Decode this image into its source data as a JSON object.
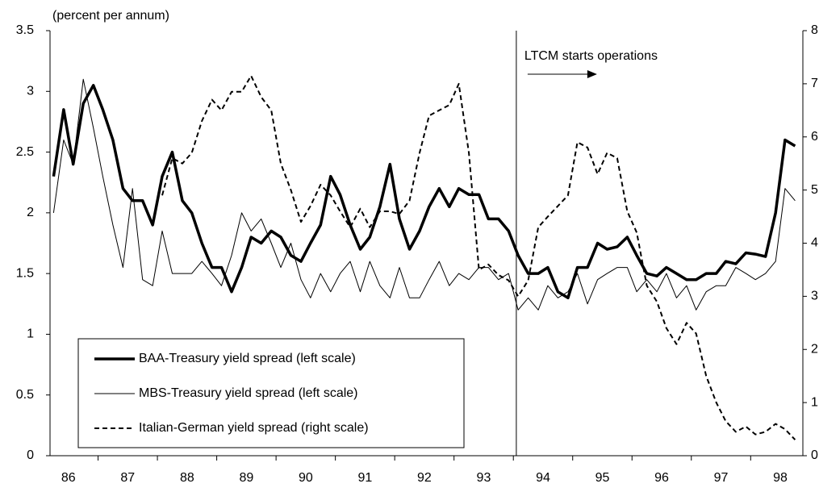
{
  "chart_data": {
    "type": "line",
    "y_label": "(percent per annum)",
    "annotation": {
      "text": "LTCM starts operations",
      "x": 1994.05
    },
    "xlim": [
      1986.19,
      1998.88
    ],
    "ylim": [
      0,
      3.5
    ],
    "y2lim": [
      0,
      8
    ],
    "yticks": [
      0,
      0.5,
      1,
      1.5,
      2,
      2.5,
      3,
      3.5
    ],
    "y2ticks": [
      0,
      1,
      2,
      3,
      4,
      5,
      6,
      7,
      8
    ],
    "xticks": [
      {
        "value": 1986.5,
        "label": "86"
      },
      {
        "value": 1987.5,
        "label": "87"
      },
      {
        "value": 1988.5,
        "label": "88"
      },
      {
        "value": 1989.5,
        "label": "89"
      },
      {
        "value": 1990.5,
        "label": "90"
      },
      {
        "value": 1991.5,
        "label": "91"
      },
      {
        "value": 1992.5,
        "label": "92"
      },
      {
        "value": 1993.5,
        "label": "93"
      },
      {
        "value": 1994.5,
        "label": "94"
      },
      {
        "value": 1995.5,
        "label": "95"
      },
      {
        "value": 1996.5,
        "label": "96"
      },
      {
        "value": 1997.5,
        "label": "97"
      },
      {
        "value": 1998.5,
        "label": "98"
      }
    ],
    "legend": "lower left",
    "x": [
      1986.25,
      1986.42,
      1986.58,
      1986.75,
      1986.92,
      1987.08,
      1987.25,
      1987.42,
      1987.58,
      1987.75,
      1987.92,
      1988.08,
      1988.25,
      1988.42,
      1988.58,
      1988.75,
      1988.92,
      1989.08,
      1989.25,
      1989.42,
      1989.58,
      1989.75,
      1989.92,
      1990.08,
      1990.25,
      1990.42,
      1990.58,
      1990.75,
      1990.92,
      1991.08,
      1991.25,
      1991.42,
      1991.58,
      1991.75,
      1991.92,
      1992.08,
      1992.25,
      1992.42,
      1992.58,
      1992.75,
      1992.92,
      1993.08,
      1993.25,
      1993.42,
      1993.58,
      1993.75,
      1993.92,
      1994.08,
      1994.25,
      1994.42,
      1994.58,
      1994.75,
      1994.92,
      1995.08,
      1995.25,
      1995.42,
      1995.58,
      1995.75,
      1995.92,
      1996.08,
      1996.25,
      1996.42,
      1996.58,
      1996.75,
      1996.92,
      1997.08,
      1997.25,
      1997.42,
      1997.58,
      1997.75,
      1997.92,
      1998.08,
      1998.25,
      1998.42,
      1998.58,
      1998.75
    ],
    "series": [
      {
        "name": "BAA-Treasury yield spread (left scale)",
        "color": "#000000",
        "width": 3.5,
        "dash": "solid",
        "values": [
          2.3,
          2.85,
          2.4,
          2.9,
          3.05,
          2.85,
          2.6,
          2.2,
          2.1,
          2.1,
          1.9,
          2.3,
          2.5,
          2.1,
          2.0,
          1.75,
          1.55,
          1.55,
          1.35,
          1.55,
          1.8,
          1.75,
          1.85,
          1.8,
          1.65,
          1.6,
          1.75,
          1.9,
          2.3,
          2.15,
          1.9,
          1.7,
          1.8,
          2.05,
          2.4,
          1.95,
          1.7,
          1.85,
          2.05,
          2.2,
          2.05,
          2.2,
          2.15,
          2.15,
          1.95,
          1.95,
          1.85,
          1.65,
          1.5,
          1.5,
          1.55,
          1.35,
          1.3,
          1.55,
          1.55,
          1.75,
          1.7,
          1.72,
          1.8,
          1.65,
          1.5,
          1.48,
          1.55,
          1.5,
          1.45,
          1.45,
          1.5,
          1.5,
          1.6,
          1.58,
          1.67,
          1.66,
          1.64,
          2.0,
          2.6,
          2.55
        ]
      },
      {
        "name": "MBS-Treasury yield spread (left scale)",
        "color": "#000000",
        "width": 1,
        "dash": "solid",
        "values": [
          2.0,
          2.6,
          2.4,
          3.1,
          2.7,
          2.3,
          1.9,
          1.55,
          2.2,
          1.45,
          1.4,
          1.85,
          1.5,
          1.5,
          1.5,
          1.6,
          1.5,
          1.4,
          1.65,
          2.0,
          1.85,
          1.95,
          1.75,
          1.55,
          1.75,
          1.45,
          1.3,
          1.5,
          1.35,
          1.5,
          1.6,
          1.35,
          1.6,
          1.4,
          1.3,
          1.55,
          1.3,
          1.3,
          1.45,
          1.6,
          1.4,
          1.5,
          1.45,
          1.55,
          1.55,
          1.45,
          1.5,
          1.2,
          1.3,
          1.2,
          1.4,
          1.3,
          1.35,
          1.5,
          1.25,
          1.45,
          1.5,
          1.55,
          1.55,
          1.35,
          1.45,
          1.35,
          1.5,
          1.3,
          1.4,
          1.2,
          1.35,
          1.4,
          1.4,
          1.55,
          1.5,
          1.45,
          1.5,
          1.6,
          2.2,
          2.1
        ]
      },
      {
        "name": "Italian-German yield spread (right scale)",
        "color": "#000000",
        "width": 2,
        "dash": "dashed",
        "axis": "y2",
        "values": [
          null,
          null,
          null,
          null,
          null,
          null,
          null,
          null,
          null,
          null,
          null,
          4.9,
          5.6,
          5.5,
          5.7,
          6.3,
          6.7,
          6.5,
          6.85,
          6.85,
          7.15,
          6.75,
          6.5,
          5.5,
          5.0,
          4.4,
          4.7,
          5.1,
          4.9,
          4.6,
          4.3,
          4.65,
          4.3,
          4.6,
          4.6,
          4.55,
          4.8,
          5.7,
          6.4,
          6.5,
          6.6,
          7.0,
          5.7,
          3.5,
          3.6,
          3.4,
          3.3,
          3.0,
          3.3,
          4.3,
          4.5,
          4.7,
          4.9,
          5.9,
          5.8,
          5.3,
          5.7,
          5.6,
          4.6,
          4.2,
          3.2,
          2.9,
          2.4,
          2.1,
          2.5,
          2.3,
          1.5,
          1.0,
          0.65,
          0.45,
          0.55,
          0.4,
          0.45,
          0.6,
          0.5,
          0.3
        ]
      }
    ]
  }
}
